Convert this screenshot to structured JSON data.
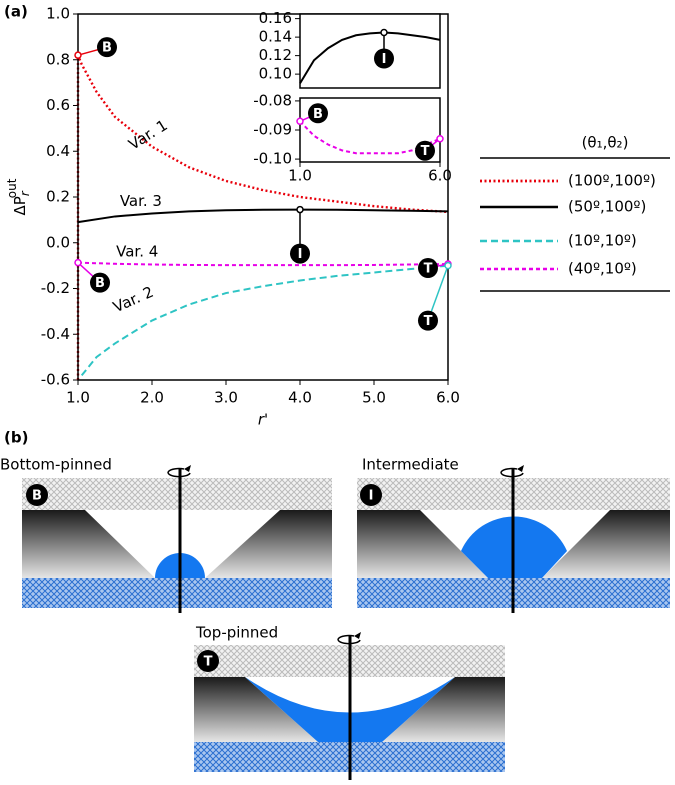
{
  "chart_data": [
    {
      "type": "line",
      "panel_label": "(a)",
      "xlabel": "r'",
      "ylabel": "ΔP",
      "ylabel_sub": "r",
      "ylabel_sup": "out",
      "xlim": [
        1.0,
        6.0
      ],
      "ylim": [
        -0.6,
        1.0
      ],
      "xticks": [
        {
          "value": 1,
          "label": "1.0"
        },
        {
          "value": 2,
          "label": "2.0"
        },
        {
          "value": 3,
          "label": "3.0"
        },
        {
          "value": 4,
          "label": "4.0"
        },
        {
          "value": 5,
          "label": "5.0"
        },
        {
          "value": 6,
          "label": "6.0"
        }
      ],
      "yticks": [
        -0.6,
        -0.4,
        -0.2,
        {
          "value": 0,
          "label": "0.0"
        },
        0.2,
        0.4,
        0.6,
        0.8,
        {
          "value": 1,
          "label": "1.0"
        }
      ],
      "legend_title": "(θ₁,θ₂)",
      "series": [
        {
          "name": "(100º,100º)",
          "color": "#e8000b",
          "linestyle": "dotted",
          "x": [
            1.0,
            1.0,
            1.05,
            1.25,
            1.5,
            2.0,
            2.5,
            3.0,
            3.5,
            4.0,
            4.5,
            5.0,
            5.5,
            6.0
          ],
          "values": [
            -0.6,
            0.82,
            0.78,
            0.66,
            0.55,
            0.42,
            0.33,
            0.27,
            0.23,
            0.2,
            0.18,
            0.16,
            0.145,
            0.135
          ]
        },
        {
          "name": "(50º,100º)",
          "color": "#000000",
          "linestyle": "solid",
          "x": [
            1.0,
            1.5,
            2.0,
            2.5,
            3.0,
            3.5,
            4.0,
            4.5,
            5.0,
            5.5,
            6.0
          ],
          "values": [
            0.09,
            0.115,
            0.128,
            0.137,
            0.142,
            0.144,
            0.145,
            0.144,
            0.142,
            0.14,
            0.137
          ]
        },
        {
          "name": "(10º,10º)",
          "color": "#2ec4c4",
          "linestyle": "dashed",
          "x": [
            1.05,
            1.25,
            1.5,
            2.0,
            2.5,
            3.0,
            3.5,
            4.0,
            4.5,
            5.0,
            5.5,
            6.0
          ],
          "values": [
            -0.58,
            -0.5,
            -0.44,
            -0.34,
            -0.27,
            -0.22,
            -0.19,
            -0.165,
            -0.145,
            -0.13,
            -0.115,
            -0.1
          ]
        },
        {
          "name": "(40º,10º)",
          "color": "#e800e8",
          "linestyle": "short-dashed",
          "x": [
            1.0,
            1.5,
            2.0,
            2.5,
            3.0,
            3.5,
            4.0,
            4.5,
            5.0,
            5.5,
            6.0
          ],
          "values": [
            -0.087,
            -0.092,
            -0.095,
            -0.097,
            -0.098,
            -0.098,
            -0.098,
            -0.098,
            -0.097,
            -0.095,
            -0.093
          ]
        }
      ],
      "annotations": [
        "Var. 1",
        "Var. 3",
        "Var. 4",
        "Var. 2"
      ],
      "point_labels": [
        "B",
        "B",
        "I",
        "T",
        "T"
      ]
    },
    {
      "type": "line",
      "xlim": [
        1.0,
        6.0
      ],
      "ylim": [
        0.085,
        0.165
      ],
      "yticks": [
        {
          "value": 0.1,
          "label": "0.10"
        },
        {
          "value": 0.12,
          "label": "0.12"
        },
        {
          "value": 0.14,
          "label": "0.14"
        },
        {
          "value": 0.16,
          "label": "0.16"
        }
      ],
      "series": [
        {
          "color": "#000000",
          "linestyle": "solid",
          "x": [
            1.0,
            1.5,
            2.0,
            2.5,
            3.0,
            3.5,
            4.0,
            4.5,
            5.0,
            5.5,
            6.0
          ],
          "values": [
            0.09,
            0.115,
            0.128,
            0.137,
            0.142,
            0.144,
            0.145,
            0.144,
            0.142,
            0.14,
            0.137
          ]
        }
      ],
      "point_labels": [
        "I"
      ]
    },
    {
      "type": "line",
      "xlim": [
        1.0,
        6.0
      ],
      "ylim": [
        -0.101,
        -0.079
      ],
      "xticks": [
        {
          "value": 1,
          "label": "1.0"
        },
        {
          "value": 6,
          "label": "6.0"
        }
      ],
      "yticks": [
        -0.08,
        -0.09,
        {
          "value": -0.1,
          "label": "-0.10"
        }
      ],
      "series": [
        {
          "color": "#e800e8",
          "linestyle": "short-dashed",
          "x": [
            1.0,
            1.5,
            2.0,
            2.5,
            3.0,
            3.5,
            4.0,
            4.5,
            5.0,
            5.5,
            6.0
          ],
          "values": [
            -0.087,
            -0.092,
            -0.095,
            -0.097,
            -0.098,
            -0.098,
            -0.098,
            -0.098,
            -0.097,
            -0.095,
            -0.093
          ]
        }
      ],
      "point_labels": [
        "B",
        "T"
      ]
    }
  ],
  "panel_b": {
    "label": "(b)",
    "panels": [
      {
        "title": "Bottom-pinned",
        "badge": "B"
      },
      {
        "title": "Intermediate",
        "badge": "I"
      },
      {
        "title": "Top-pinned",
        "badge": "T"
      }
    ]
  }
}
